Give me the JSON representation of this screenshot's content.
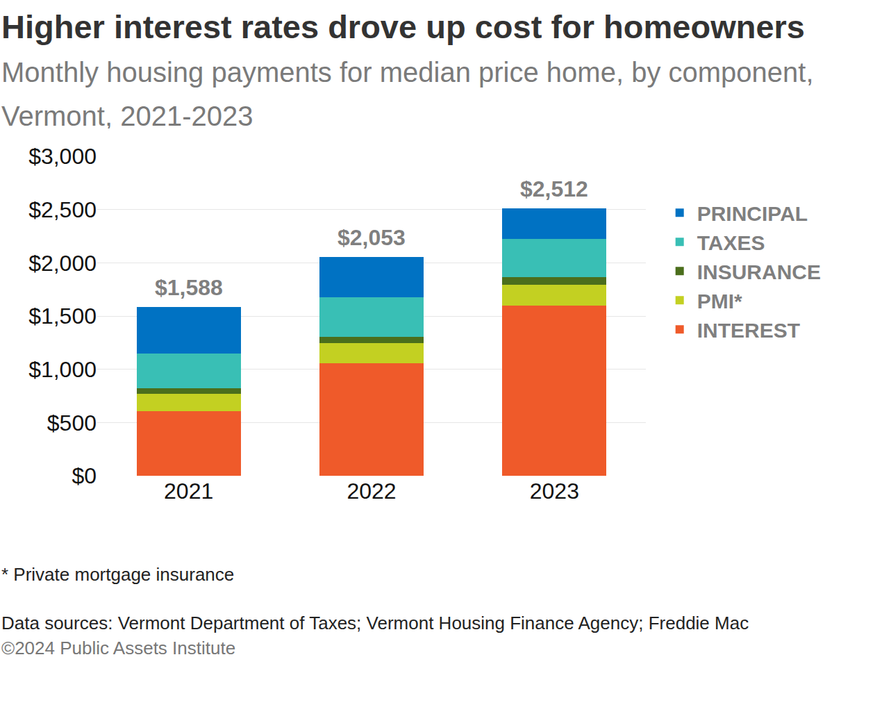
{
  "chart_data": {
    "type": "bar",
    "stacked": true,
    "title": "Higher interest rates drove up cost for homeowners",
    "subtitle": "Monthly housing payments for median price home, by component, Vermont, 2021-2023",
    "categories": [
      "2021",
      "2022",
      "2023"
    ],
    "series": [
      {
        "name": "INTEREST",
        "color": "#ef5a2a",
        "values": [
          605,
          1059,
          1599
        ]
      },
      {
        "name": "PMI*",
        "color": "#c3d022",
        "values": [
          165,
          184,
          197
        ]
      },
      {
        "name": "INSURANCE",
        "color": "#4b6e1c",
        "values": [
          52,
          60,
          72
        ]
      },
      {
        "name": "TAXES",
        "color": "#39bfb5",
        "values": [
          329,
          375,
          356
        ]
      },
      {
        "name": "PRINCIPAL",
        "color": "#0072c3",
        "values": [
          437,
          375,
          288
        ]
      }
    ],
    "totals": [
      1588,
      2053,
      2512
    ],
    "total_labels": [
      "$1,588",
      "$2,053",
      "$2,512"
    ],
    "ylim": [
      0,
      3000
    ],
    "yticks": [
      {
        "value": 0,
        "label": "$0"
      },
      {
        "value": 500,
        "label": "$500"
      },
      {
        "value": 1000,
        "label": "$1,000"
      },
      {
        "value": 1500,
        "label": "$1,500"
      },
      {
        "value": 2000,
        "label": "$2,000"
      },
      {
        "value": 2500,
        "label": "$2,500"
      },
      {
        "value": 3000,
        "label": "$3,000"
      }
    ],
    "grid": true,
    "legend": "right",
    "footnote": "* Private mortgage insurance",
    "source": "Data sources: Vermont Department of Taxes; Vermont Housing Finance Agency; Freddie Mac",
    "credit": "©2024 Public Assets Institute"
  }
}
